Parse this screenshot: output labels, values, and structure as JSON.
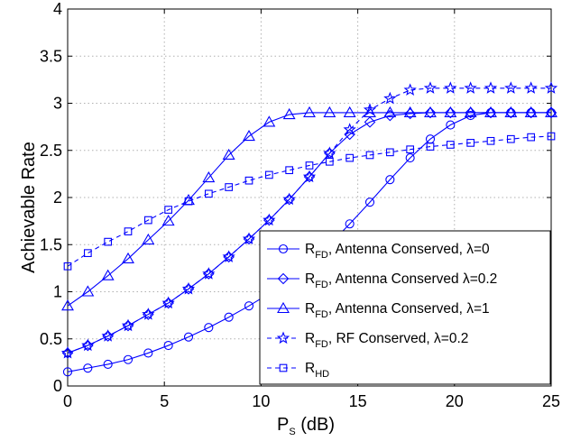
{
  "chart_data": {
    "type": "line",
    "xlabel_main": "P",
    "xlabel_sub": "S",
    "xlabel_unit": " (dB)",
    "ylabel": "Achievable Rate",
    "xlim": [
      0,
      25
    ],
    "ylim": [
      0,
      4
    ],
    "xticks": [
      "0",
      "5",
      "10",
      "15",
      "20",
      "25"
    ],
    "yticks": [
      "0",
      "0.5",
      "1",
      "1.5",
      "2",
      "2.5",
      "3",
      "3.5",
      "4"
    ],
    "grid": true,
    "legend_position": "bottom-right",
    "x": [
      0,
      1.042,
      2.083,
      3.125,
      4.167,
      5.208,
      6.25,
      7.292,
      8.333,
      9.375,
      10.417,
      11.458,
      12.5,
      13.542,
      14.583,
      15.625,
      16.667,
      17.708,
      18.75,
      19.792,
      20.833,
      21.875,
      22.917,
      23.958,
      25
    ],
    "series": [
      {
        "name_main": "R",
        "name_sub": "FD",
        "name_rest": ", Antenna Conserved, λ=0",
        "marker": "circle",
        "dashed": false,
        "values": [
          0.15,
          0.19,
          0.23,
          0.28,
          0.35,
          0.43,
          0.52,
          0.62,
          0.73,
          0.85,
          0.98,
          1.12,
          1.3,
          1.5,
          1.72,
          1.95,
          2.19,
          2.42,
          2.62,
          2.77,
          2.87,
          2.9,
          2.9,
          2.9,
          2.9
        ]
      },
      {
        "name_main": "R",
        "name_sub": "FD",
        "name_rest": ", Antenna Conserved λ=0.2",
        "marker": "diamond",
        "dashed": false,
        "values": [
          0.35,
          0.43,
          0.53,
          0.64,
          0.76,
          0.88,
          1.03,
          1.19,
          1.37,
          1.56,
          1.76,
          1.98,
          2.22,
          2.47,
          2.67,
          2.8,
          2.87,
          2.89,
          2.9,
          2.9,
          2.9,
          2.9,
          2.9,
          2.9,
          2.9
        ]
      },
      {
        "name_main": "R",
        "name_sub": "FD",
        "name_rest": ", Antenna Conserved, λ=1",
        "marker": "triangle",
        "dashed": false,
        "values": [
          0.85,
          1.0,
          1.17,
          1.35,
          1.55,
          1.75,
          1.97,
          2.21,
          2.45,
          2.65,
          2.8,
          2.88,
          2.9,
          2.9,
          2.9,
          2.9,
          2.9,
          2.9,
          2.9,
          2.9,
          2.9,
          2.9,
          2.9,
          2.9,
          2.9
        ]
      },
      {
        "name_main": "R",
        "name_sub": "FD",
        "name_rest": ", RF Conserved, λ=0.2",
        "marker": "star",
        "dashed": true,
        "values": [
          0.35,
          0.43,
          0.53,
          0.64,
          0.76,
          0.88,
          1.03,
          1.19,
          1.37,
          1.56,
          1.76,
          1.98,
          2.22,
          2.47,
          2.72,
          2.93,
          3.05,
          3.14,
          3.16,
          3.16,
          3.16,
          3.16,
          3.16,
          3.16,
          3.16
        ]
      },
      {
        "name_main": "R",
        "name_sub": "HD",
        "name_rest": "",
        "marker": "square",
        "dashed": true,
        "values": [
          1.27,
          1.41,
          1.53,
          1.64,
          1.76,
          1.87,
          1.96,
          2.04,
          2.11,
          2.18,
          2.24,
          2.29,
          2.34,
          2.38,
          2.42,
          2.45,
          2.48,
          2.51,
          2.54,
          2.56,
          2.58,
          2.6,
          2.62,
          2.64,
          2.65
        ]
      }
    ]
  },
  "colors": {
    "line": "#0000ff",
    "grid": "#b0b0b0",
    "axis": "#000000",
    "legend_bg": "#ffffff"
  }
}
